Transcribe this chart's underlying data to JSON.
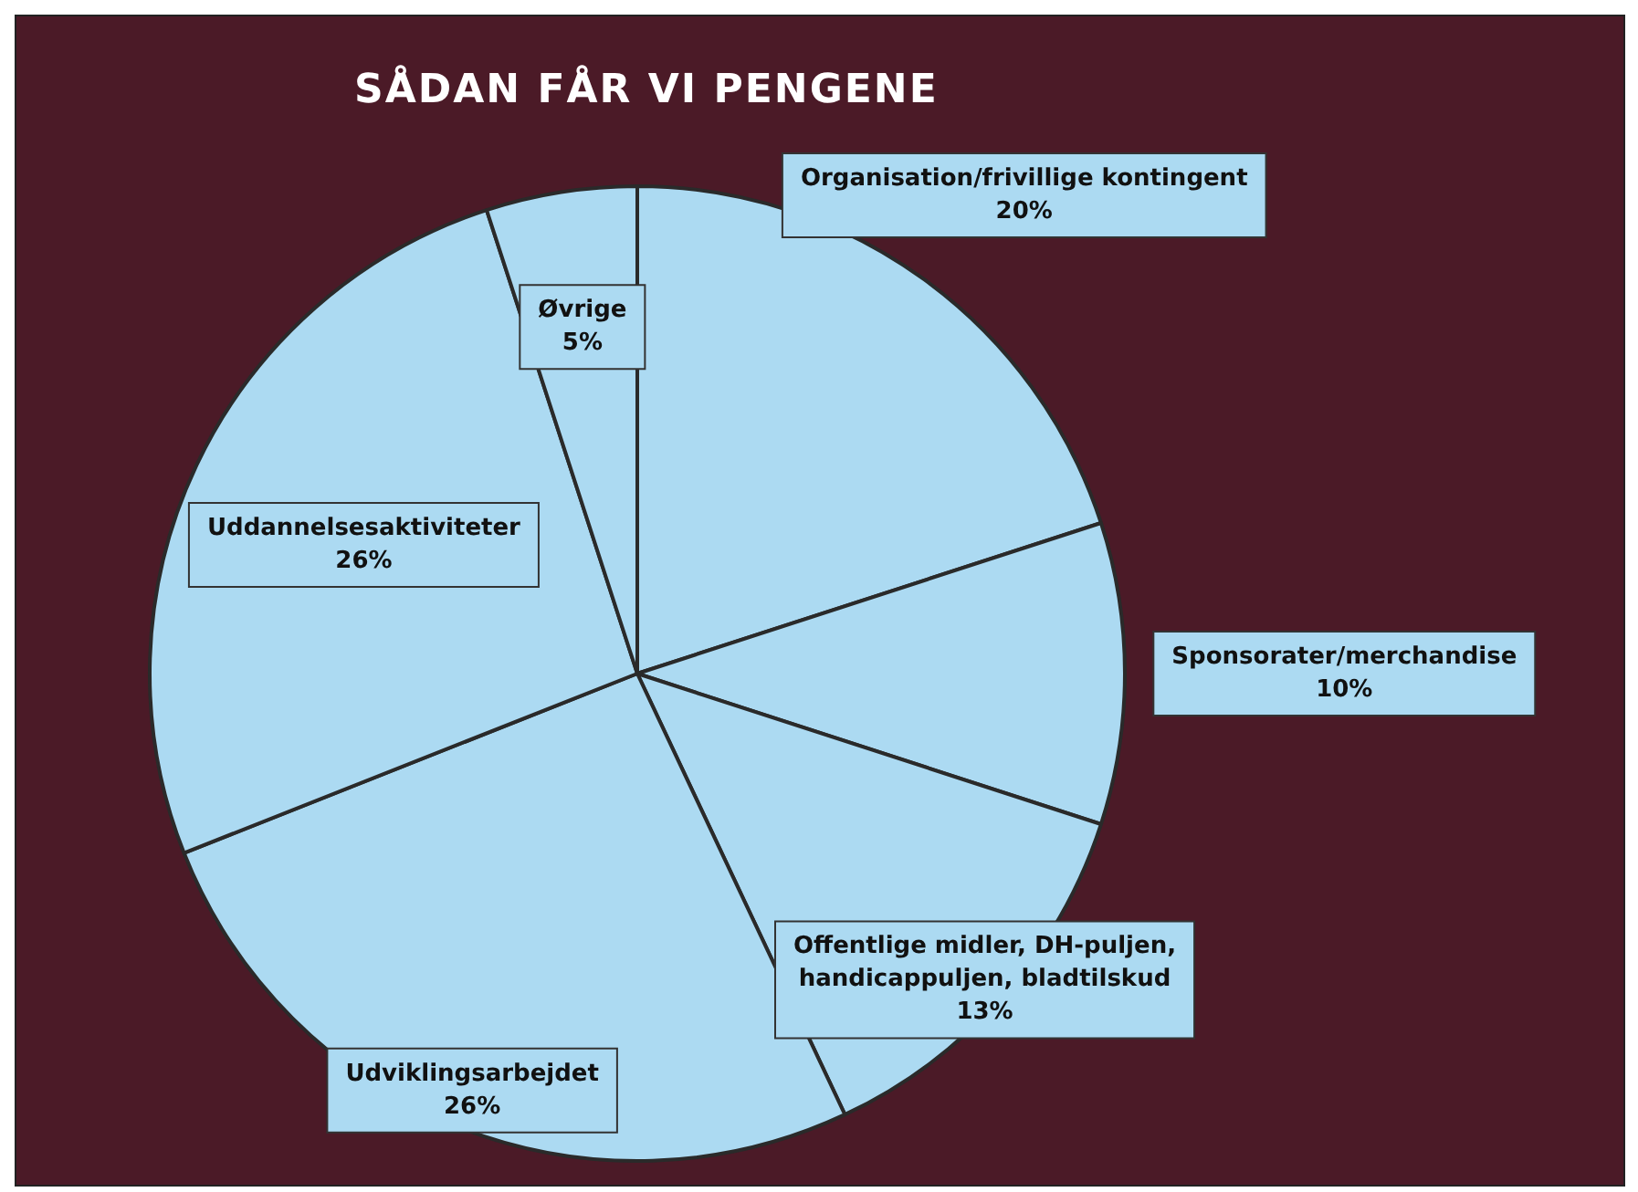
{
  "chart_data": {
    "type": "pie",
    "title": "SÅDAN FÅR VI PENGENE",
    "categories": [
      "Organisation/frivillige kontingent",
      "Sponsorater/merchandise",
      "Offentlige midler, DH-puljen, handicappuljen, bladtilskud",
      "Udviklingsarbejdet",
      "Uddannelsesaktiviteter",
      "Øvrige"
    ],
    "values": [
      20,
      10,
      13,
      26,
      26,
      5
    ],
    "colors": [
      "#acdaf2",
      "#acdaf2",
      "#acdaf2",
      "#acdaf2",
      "#acdaf2",
      "#acdaf2"
    ],
    "value_labels": [
      "20%",
      "10%",
      "13%",
      "26%",
      "26%",
      "5%"
    ],
    "legend": false
  }
}
